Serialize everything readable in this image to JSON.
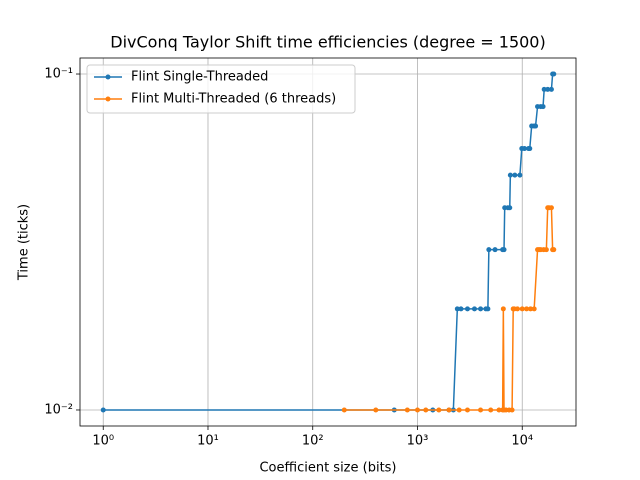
{
  "chart_data": {
    "type": "line",
    "title": "DivConq Taylor Shift time efficiencies (degree = 1500)",
    "x_label": "Coefficient size (bits)",
    "y_label": "Time (ticks)",
    "x_scale": "log",
    "y_scale": "log",
    "grid": true,
    "legend": "upper left",
    "xlim": [
      0.6,
      32600
    ],
    "ylim": [
      0.00896,
      0.1116
    ],
    "xticks": [
      {
        "value": 1,
        "label": "10⁰"
      },
      {
        "value": 10,
        "label": "10¹"
      },
      {
        "value": 100,
        "label": "10²"
      },
      {
        "value": 1000,
        "label": "10³"
      },
      {
        "value": 10000,
        "label": "10⁴"
      }
    ],
    "yticks": [
      {
        "value": 0.01,
        "label": "10⁻²"
      },
      {
        "value": 0.1,
        "label": "10⁻¹"
      }
    ],
    "series": [
      {
        "name": "Flint Single-Threaded",
        "color": "#1f77b4",
        "x": [
          1,
          600,
          1400,
          2000,
          2200,
          2400,
          2600,
          3000,
          3500,
          4000,
          4500,
          4700,
          4800,
          5500,
          6500,
          6700,
          6800,
          7300,
          7600,
          7700,
          8500,
          9500,
          9900,
          10500,
          11500,
          11800,
          12300,
          13000,
          13400,
          14000,
          15000,
          15800,
          16200,
          17500,
          19000,
          19500,
          20000
        ],
        "values": [
          0.01,
          0.01,
          0.01,
          0.01,
          0.01,
          0.02,
          0.02,
          0.02,
          0.02,
          0.02,
          0.02,
          0.02,
          0.03,
          0.03,
          0.03,
          0.03,
          0.04,
          0.04,
          0.04,
          0.05,
          0.05,
          0.05,
          0.06,
          0.06,
          0.06,
          0.06,
          0.07,
          0.07,
          0.07,
          0.08,
          0.08,
          0.08,
          0.09,
          0.09,
          0.09,
          0.1,
          0.1
        ]
      },
      {
        "name": "Flint Multi-Threaded (6 threads)",
        "color": "#ff7f0e",
        "x": [
          200,
          400,
          800,
          1000,
          1200,
          1600,
          2000,
          2500,
          3000,
          4000,
          5000,
          6000,
          6500,
          6600,
          6700,
          7000,
          7500,
          8000,
          8200,
          8400,
          9000,
          10000,
          11000,
          12000,
          13000,
          14000,
          14500,
          15000,
          16000,
          17000,
          17500,
          18000,
          19000,
          19500,
          20000
        ],
        "values": [
          0.01,
          0.01,
          0.01,
          0.01,
          0.01,
          0.01,
          0.01,
          0.01,
          0.01,
          0.01,
          0.01,
          0.01,
          0.01,
          0.02,
          0.01,
          0.01,
          0.01,
          0.01,
          0.02,
          0.02,
          0.02,
          0.02,
          0.02,
          0.02,
          0.02,
          0.03,
          0.03,
          0.03,
          0.03,
          0.03,
          0.04,
          0.04,
          0.04,
          0.03,
          0.03
        ]
      }
    ]
  }
}
